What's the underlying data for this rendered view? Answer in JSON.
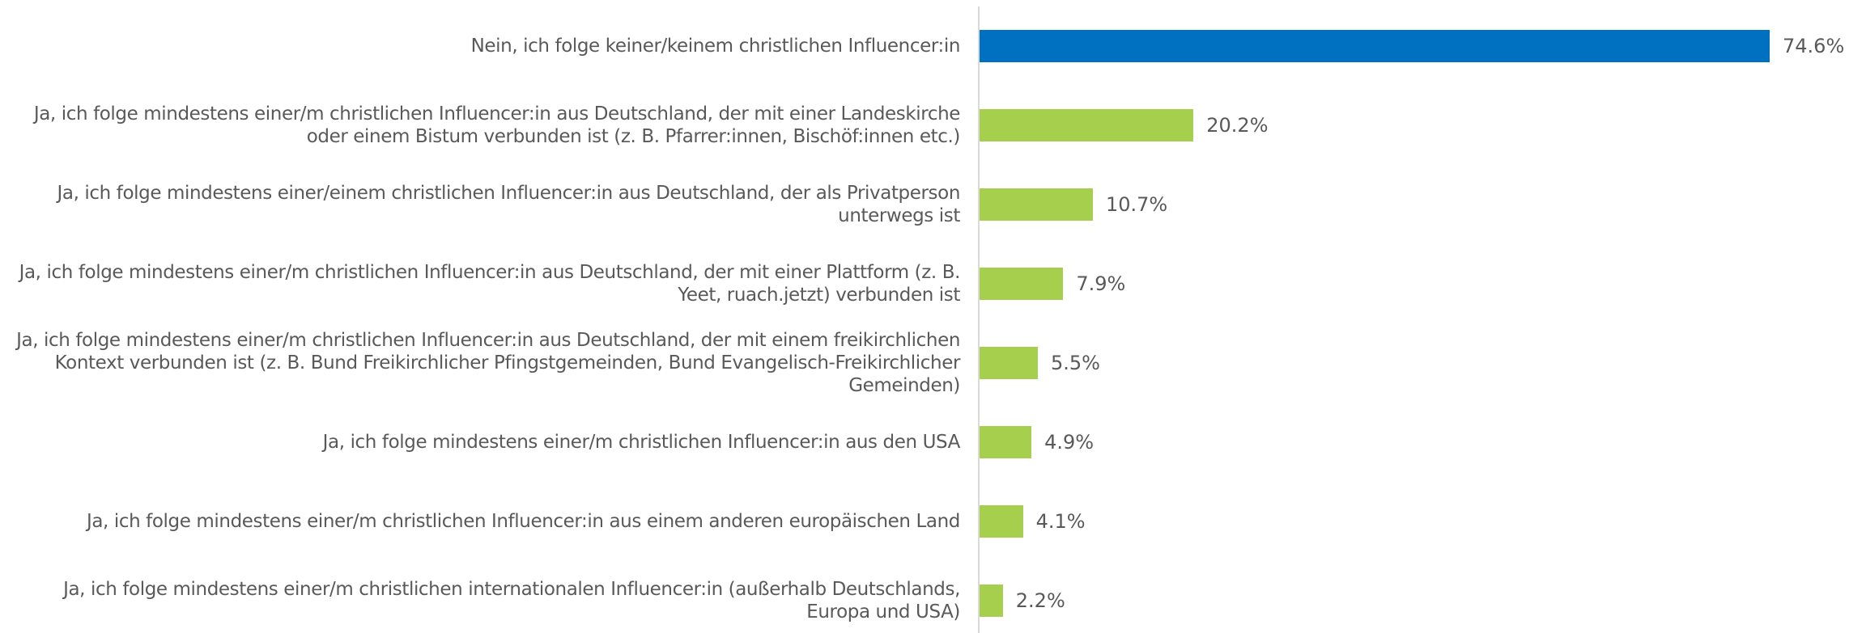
{
  "chart_data": {
    "type": "bar",
    "orientation": "horizontal",
    "categories": [
      "Nein, ich folge keiner/keinem christlichen Influencer:in",
      "Ja, ich folge mindestens einer/m christlichen Influencer:in aus Deutschland, der mit einer Landeskirche oder einem Bistum verbunden ist (z. B. Pfarrer:innen, Bischöf:innen etc.)",
      "Ja, ich folge mindestens einer/einem christlichen Influencer:in aus Deutschland, der als Privatperson unterwegs ist",
      "Ja, ich folge mindestens einer/m christlichen Influencer:in aus Deutschland, der mit einer Plattform (z. B. Yeet, ruach.jetzt) verbunden ist",
      "Ja, ich folge mindestens einer/m christlichen Influencer:in aus Deutschland, der mit einem freikirchlichen Kontext verbunden ist (z. B. Bund Freikirchlicher Pfingstgemeinden, Bund Evangelisch-Freikirchlicher Gemeinden)",
      "Ja, ich folge mindestens einer/m christlichen Influencer:in aus den USA",
      "Ja, ich folge mindestens einer/m christlichen Influencer:in aus einem anderen europäischen Land",
      "Ja, ich folge mindestens einer/m christlichen internationalen Influencer:in (außerhalb Deutschlands, Europa und USA)"
    ],
    "values": [
      74.6,
      20.2,
      10.7,
      7.9,
      5.5,
      4.9,
      4.1,
      2.2
    ],
    "value_labels": [
      "74.6%",
      "20.2%",
      "10.7%",
      "7.9%",
      "5.5%",
      "4.9%",
      "4.1%",
      "2.2%"
    ],
    "colors": [
      "#0070c0",
      "#a5cf4c",
      "#a5cf4c",
      "#a5cf4c",
      "#a5cf4c",
      "#a5cf4c",
      "#a5cf4c",
      "#a5cf4c"
    ]
  }
}
